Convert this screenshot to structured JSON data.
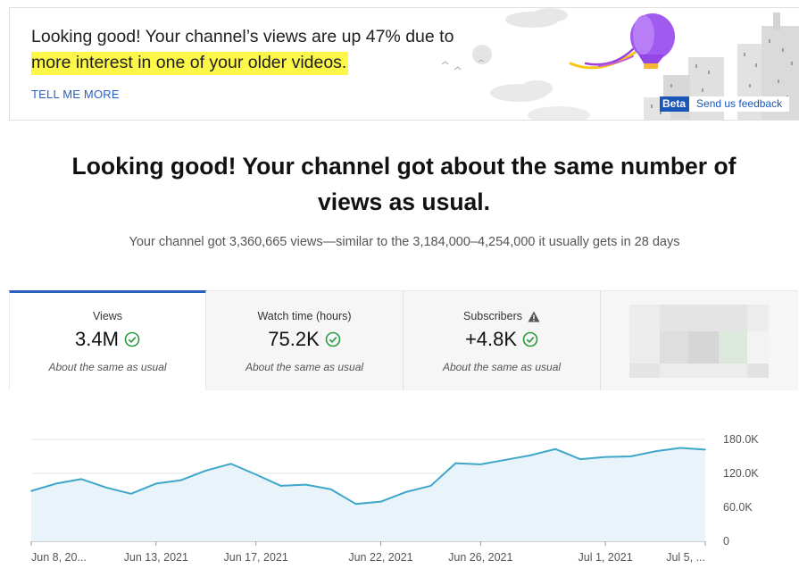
{
  "insight": {
    "text_plain": "Looking good! Your channel’s views are up 47% due to",
    "text_highlight": "more interest in one of your older videos.",
    "link": "TELL ME MORE",
    "beta_label": "Beta",
    "feedback_label": "Send us feedback"
  },
  "headline": "Looking good! Your channel got about the same number of views as usual.",
  "subline": "Your channel got 3,360,665 views—similar to the 3,184,000–4,254,000 it usually gets in 28 days",
  "tabs": [
    {
      "title": "Views",
      "value": "3.4M",
      "sub": "About the same as usual",
      "status": "check-icon"
    },
    {
      "title": "Watch time (hours)",
      "value": "75.2K",
      "sub": "About the same as usual",
      "status": "check-icon"
    },
    {
      "title": "Subscribers",
      "value": "+4.8K",
      "sub": "About the same as usual",
      "status": "check-icon",
      "title_icon": "warning-icon"
    }
  ],
  "colors": {
    "accent": "#2c60c0",
    "line": "#3ea6c9",
    "area": "#e9f4fa",
    "check": "#2e9a44",
    "highlight": "#fdf74a"
  },
  "chart_data": {
    "type": "area",
    "x": [
      "Jun 8, 2021",
      "Jun 9, 2021",
      "Jun 10, 2021",
      "Jun 11, 2021",
      "Jun 12, 2021",
      "Jun 13, 2021",
      "Jun 14, 2021",
      "Jun 15, 2021",
      "Jun 16, 2021",
      "Jun 17, 2021",
      "Jun 18, 2021",
      "Jun 19, 2021",
      "Jun 20, 2021",
      "Jun 21, 2021",
      "Jun 22, 2021",
      "Jun 23, 2021",
      "Jun 24, 2021",
      "Jun 25, 2021",
      "Jun 26, 2021",
      "Jun 27, 2021",
      "Jun 28, 2021",
      "Jun 29, 2021",
      "Jun 30, 2021",
      "Jul 1, 2021",
      "Jul 2, 2021",
      "Jul 3, 2021",
      "Jul 4, 2021",
      "Jul 5, 2021"
    ],
    "series": [
      {
        "values": [
          89000,
          102000,
          110000,
          95000,
          84000,
          102000,
          108000,
          125000,
          137000,
          118000,
          98000,
          100000,
          92000,
          66000,
          70000,
          87000,
          98000,
          138000,
          136000,
          144000,
          152000,
          163000,
          145000,
          149000,
          150000,
          159000,
          165000,
          162000
        ]
      }
    ],
    "x_tick_labels": [
      "Jun 8, 20...",
      "Jun 13, 2021",
      "Jun 17, 2021",
      "Jun 22, 2021",
      "Jun 26, 2021",
      "Jul 1, 2021",
      "Jul 5, ..."
    ],
    "x_tick_index": [
      0,
      5,
      9,
      14,
      18,
      23,
      27
    ],
    "y_ticks": [
      0,
      60000,
      120000,
      180000
    ],
    "y_tick_labels": [
      "0",
      "60.0K",
      "120.0K",
      "180.0K"
    ],
    "ylim": [
      0,
      180000
    ],
    "grid": true
  }
}
